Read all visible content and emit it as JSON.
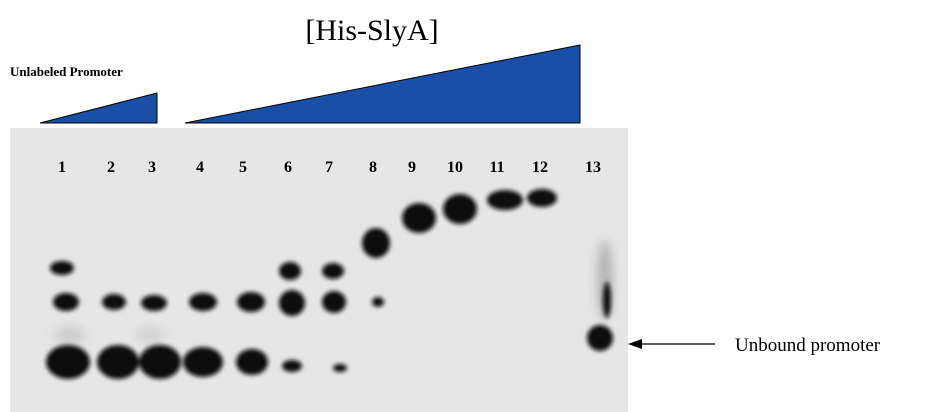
{
  "title": "[His-SlyA]",
  "gradient_label": "Unlabeled Promoter",
  "lanes": [
    "1",
    "2",
    "3",
    "4",
    "5",
    "6",
    "7",
    "8",
    "9",
    "10",
    "11",
    "12",
    "13"
  ],
  "annotation": "Unbound promoter"
}
